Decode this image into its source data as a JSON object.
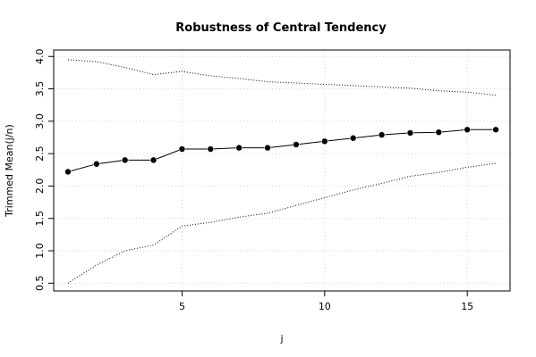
{
  "chart_data": {
    "type": "line",
    "title": "Robustness of Central Tendency",
    "xlabel": "j",
    "ylabel": "Trimmed Mean(j/n)",
    "xlim": [
      0.5,
      16.5
    ],
    "ylim": [
      0.38,
      4.1
    ],
    "x_ticks": [
      5,
      10,
      15
    ],
    "y_ticks": [
      0.5,
      1.0,
      1.5,
      2.0,
      2.5,
      3.0,
      3.5,
      4.0
    ],
    "x_tick_labels": [
      "5",
      "10",
      "15"
    ],
    "y_tick_labels": [
      "0.5",
      "1.0",
      "1.5",
      "2.0",
      "2.5",
      "3.0",
      "3.5",
      "4.0"
    ],
    "grid": true,
    "x": [
      1,
      2,
      3,
      4,
      5,
      6,
      7,
      8,
      9,
      10,
      11,
      12,
      13,
      14,
      15,
      16
    ],
    "series": [
      {
        "role": "trimmed-mean",
        "style": "solid-line-with-points",
        "values": [
          2.22,
          2.34,
          2.4,
          2.4,
          2.57,
          2.57,
          2.59,
          2.59,
          2.64,
          2.69,
          2.74,
          2.79,
          2.82,
          2.83,
          2.87,
          2.87
        ]
      },
      {
        "role": "upper-bound",
        "style": "dotted",
        "values": [
          3.95,
          3.92,
          3.83,
          3.72,
          3.77,
          3.7,
          3.66,
          3.61,
          3.59,
          3.57,
          3.55,
          3.53,
          3.51,
          3.47,
          3.45,
          3.4
        ]
      },
      {
        "role": "lower-bound",
        "style": "dotted",
        "values": [
          0.5,
          0.78,
          1.0,
          1.09,
          1.38,
          1.44,
          1.52,
          1.58,
          1.7,
          1.82,
          1.94,
          2.04,
          2.15,
          2.21,
          2.29,
          2.35
        ]
      }
    ],
    "colors": {
      "line": "#000000",
      "grid": "#d3d3d3"
    }
  }
}
